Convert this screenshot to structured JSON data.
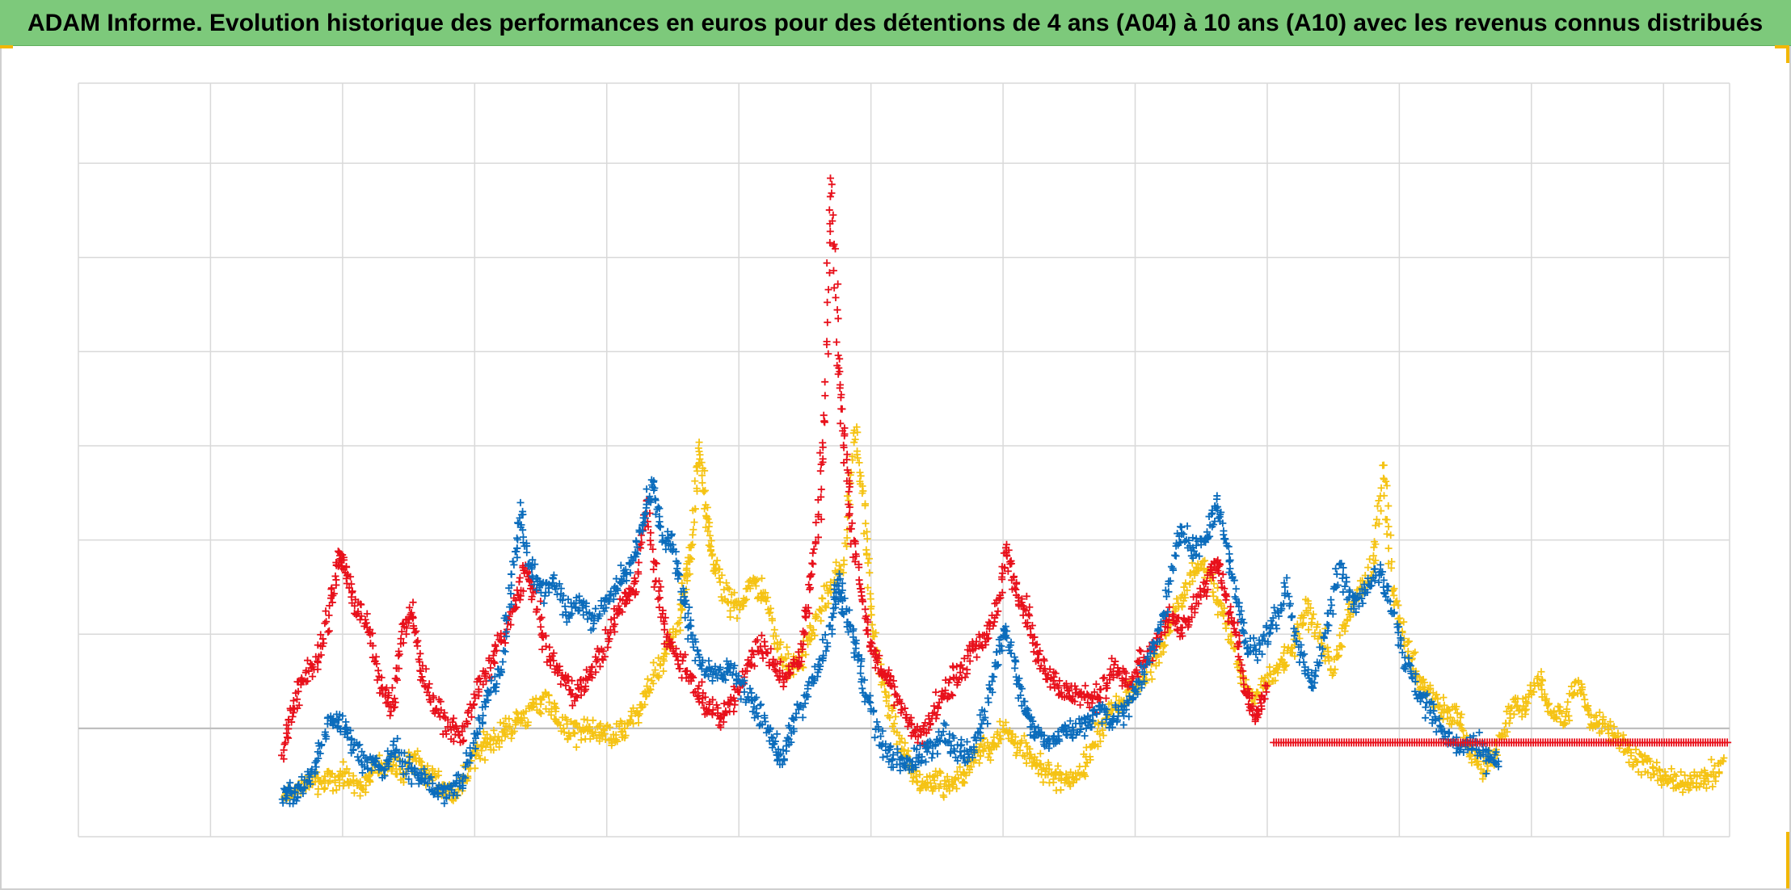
{
  "title": "ADAM Informe. Evolution historique des performances en euros pour des détentions de 4 ans (A04) à 10 ans (A10) avec les revenus connus distribués",
  "colors": {
    "header_bg": "#7dc97b",
    "accent_corner": "#f2b705",
    "grid": "#d9d9d9",
    "zero_line": "#bfbfbf"
  },
  "chart_data": {
    "type": "scatter",
    "marker": "plus",
    "grid": true,
    "legend": "none",
    "axis_labels_shown": false,
    "xlim": [
      0,
      12.5
    ],
    "ylim": [
      -1.15,
      6.85
    ],
    "zero_line_y": 0,
    "series": [
      {
        "color": "#e8101b",
        "points": [
          [
            1.55,
            -0.25
          ],
          [
            1.62,
            0.2
          ],
          [
            1.7,
            0.5
          ],
          [
            1.8,
            0.7
          ],
          [
            1.9,
            1.2
          ],
          [
            1.97,
            1.85
          ],
          [
            2.02,
            1.7
          ],
          [
            2.1,
            1.3
          ],
          [
            2.2,
            1.05
          ],
          [
            2.3,
            0.4
          ],
          [
            2.38,
            0.2
          ],
          [
            2.45,
            1.0
          ],
          [
            2.52,
            1.25
          ],
          [
            2.6,
            0.6
          ],
          [
            2.7,
            0.2
          ],
          [
            2.8,
            0.05
          ],
          [
            2.9,
            -0.1
          ],
          [
            3.0,
            0.35
          ],
          [
            3.1,
            0.6
          ],
          [
            3.2,
            0.9
          ],
          [
            3.3,
            1.3
          ],
          [
            3.38,
            1.7
          ],
          [
            3.45,
            1.4
          ],
          [
            3.55,
            0.8
          ],
          [
            3.65,
            0.55
          ],
          [
            3.75,
            0.4
          ],
          [
            3.85,
            0.5
          ],
          [
            3.95,
            0.8
          ],
          [
            4.05,
            1.1
          ],
          [
            4.15,
            1.4
          ],
          [
            4.22,
            1.5
          ],
          [
            4.3,
            2.4
          ],
          [
            4.38,
            1.5
          ],
          [
            4.45,
            0.95
          ],
          [
            4.55,
            0.75
          ],
          [
            4.65,
            0.5
          ],
          [
            4.75,
            0.3
          ],
          [
            4.85,
            0.1
          ],
          [
            4.95,
            0.3
          ],
          [
            5.05,
            0.6
          ],
          [
            5.15,
            0.9
          ],
          [
            5.25,
            0.7
          ],
          [
            5.35,
            0.55
          ],
          [
            5.45,
            0.7
          ],
          [
            5.52,
            1.3
          ],
          [
            5.6,
            2.2
          ],
          [
            5.65,
            3.4
          ],
          [
            5.7,
            5.9
          ],
          [
            5.75,
            3.9
          ],
          [
            5.8,
            3.0
          ],
          [
            5.85,
            2.2
          ],
          [
            5.92,
            1.5
          ],
          [
            6.0,
            0.9
          ],
          [
            6.08,
            0.6
          ],
          [
            6.15,
            0.5
          ],
          [
            6.25,
            0.2
          ],
          [
            6.35,
            -0.1
          ],
          [
            6.45,
            0.05
          ],
          [
            6.55,
            0.4
          ],
          [
            6.65,
            0.55
          ],
          [
            6.75,
            0.75
          ],
          [
            6.85,
            0.95
          ],
          [
            6.95,
            1.2
          ],
          [
            7.02,
            1.9
          ],
          [
            7.1,
            1.5
          ],
          [
            7.18,
            1.25
          ],
          [
            7.25,
            0.8
          ],
          [
            7.35,
            0.6
          ],
          [
            7.45,
            0.4
          ],
          [
            7.55,
            0.35
          ],
          [
            7.65,
            0.3
          ],
          [
            7.75,
            0.4
          ],
          [
            7.85,
            0.65
          ],
          [
            7.95,
            0.45
          ],
          [
            8.05,
            0.7
          ],
          [
            8.15,
            0.9
          ],
          [
            8.25,
            1.2
          ],
          [
            8.35,
            1.05
          ],
          [
            8.45,
            1.3
          ],
          [
            8.55,
            1.6
          ],
          [
            8.62,
            1.8
          ],
          [
            8.7,
            1.3
          ],
          [
            8.78,
            0.9
          ],
          [
            8.85,
            0.3
          ],
          [
            8.92,
            0.15
          ],
          [
            9.0,
            0.45
          ]
        ]
      },
      {
        "color": "#0b6cbc",
        "points": [
          [
            1.55,
            -0.7
          ],
          [
            1.62,
            -0.72
          ],
          [
            1.7,
            -0.62
          ],
          [
            1.8,
            -0.4
          ],
          [
            1.9,
            0.1
          ],
          [
            2.0,
            0.05
          ],
          [
            2.1,
            -0.25
          ],
          [
            2.2,
            -0.35
          ],
          [
            2.3,
            -0.45
          ],
          [
            2.4,
            -0.2
          ],
          [
            2.5,
            -0.45
          ],
          [
            2.6,
            -0.5
          ],
          [
            2.7,
            -0.65
          ],
          [
            2.8,
            -0.7
          ],
          [
            2.9,
            -0.55
          ],
          [
            3.0,
            -0.1
          ],
          [
            3.1,
            0.35
          ],
          [
            3.2,
            0.6
          ],
          [
            3.28,
            1.6
          ],
          [
            3.35,
            2.25
          ],
          [
            3.42,
            1.7
          ],
          [
            3.5,
            1.45
          ],
          [
            3.6,
            1.6
          ],
          [
            3.7,
            1.2
          ],
          [
            3.8,
            1.35
          ],
          [
            3.9,
            1.1
          ],
          [
            4.0,
            1.35
          ],
          [
            4.1,
            1.6
          ],
          [
            4.2,
            1.75
          ],
          [
            4.28,
            2.25
          ],
          [
            4.35,
            2.6
          ],
          [
            4.42,
            2.05
          ],
          [
            4.5,
            1.95
          ],
          [
            4.58,
            1.4
          ],
          [
            4.65,
            0.9
          ],
          [
            4.75,
            0.65
          ],
          [
            4.85,
            0.55
          ],
          [
            4.95,
            0.65
          ],
          [
            5.05,
            0.4
          ],
          [
            5.15,
            0.15
          ],
          [
            5.25,
            -0.1
          ],
          [
            5.32,
            -0.35
          ],
          [
            5.4,
            0.0
          ],
          [
            5.5,
            0.35
          ],
          [
            5.6,
            0.6
          ],
          [
            5.7,
            1.1
          ],
          [
            5.75,
            1.55
          ],
          [
            5.8,
            1.25
          ],
          [
            5.88,
            0.9
          ],
          [
            5.95,
            0.45
          ],
          [
            6.05,
            -0.05
          ],
          [
            6.15,
            -0.3
          ],
          [
            6.25,
            -0.38
          ],
          [
            6.35,
            -0.3
          ],
          [
            6.45,
            -0.2
          ],
          [
            6.55,
            -0.05
          ],
          [
            6.65,
            -0.25
          ],
          [
            6.75,
            -0.3
          ],
          [
            6.85,
            0.1
          ],
          [
            6.95,
            0.7
          ],
          [
            7.02,
            1.1
          ],
          [
            7.1,
            0.55
          ],
          [
            7.18,
            0.15
          ],
          [
            7.25,
            -0.05
          ],
          [
            7.35,
            -0.15
          ],
          [
            7.45,
            -0.05
          ],
          [
            7.55,
            0.0
          ],
          [
            7.65,
            0.05
          ],
          [
            7.75,
            0.2
          ],
          [
            7.85,
            0.1
          ],
          [
            7.95,
            0.25
          ],
          [
            8.05,
            0.55
          ],
          [
            8.15,
            0.9
          ],
          [
            8.25,
            1.45
          ],
          [
            8.35,
            2.15
          ],
          [
            8.45,
            1.85
          ],
          [
            8.55,
            2.05
          ],
          [
            8.62,
            2.4
          ],
          [
            8.7,
            1.9
          ],
          [
            8.78,
            1.35
          ],
          [
            8.85,
            0.8
          ],
          [
            8.95,
            0.9
          ],
          [
            9.05,
            1.1
          ],
          [
            9.15,
            1.5
          ],
          [
            9.25,
            0.75
          ],
          [
            9.35,
            0.45
          ],
          [
            9.45,
            1.1
          ],
          [
            9.55,
            1.7
          ],
          [
            9.65,
            1.35
          ],
          [
            9.75,
            1.5
          ],
          [
            9.85,
            1.7
          ],
          [
            9.95,
            1.3
          ],
          [
            10.05,
            0.7
          ],
          [
            10.15,
            0.35
          ],
          [
            10.25,
            0.15
          ],
          [
            10.35,
            -0.05
          ],
          [
            10.45,
            -0.25
          ],
          [
            10.55,
            -0.15
          ],
          [
            10.65,
            -0.3
          ],
          [
            10.75,
            -0.35
          ]
        ]
      },
      {
        "color": "#f5c314",
        "points": [
          [
            1.55,
            -0.75
          ],
          [
            1.65,
            -0.65
          ],
          [
            1.75,
            -0.55
          ],
          [
            1.85,
            -0.6
          ],
          [
            1.95,
            -0.5
          ],
          [
            2.05,
            -0.55
          ],
          [
            2.15,
            -0.6
          ],
          [
            2.25,
            -0.45
          ],
          [
            2.35,
            -0.35
          ],
          [
            2.45,
            -0.5
          ],
          [
            2.55,
            -0.3
          ],
          [
            2.65,
            -0.5
          ],
          [
            2.75,
            -0.6
          ],
          [
            2.85,
            -0.7
          ],
          [
            2.95,
            -0.45
          ],
          [
            3.05,
            -0.2
          ],
          [
            3.15,
            -0.1
          ],
          [
            3.25,
            0.0
          ],
          [
            3.35,
            0.1
          ],
          [
            3.45,
            0.2
          ],
          [
            3.55,
            0.35
          ],
          [
            3.65,
            0.05
          ],
          [
            3.75,
            -0.05
          ],
          [
            3.85,
            0.0
          ],
          [
            3.95,
            -0.05
          ],
          [
            4.05,
            -0.1
          ],
          [
            4.15,
            0.0
          ],
          [
            4.25,
            0.2
          ],
          [
            4.35,
            0.5
          ],
          [
            4.45,
            0.8
          ],
          [
            4.55,
            1.15
          ],
          [
            4.6,
            1.6
          ],
          [
            4.65,
            2.0
          ],
          [
            4.7,
            3.05
          ],
          [
            4.75,
            2.3
          ],
          [
            4.8,
            1.8
          ],
          [
            4.9,
            1.4
          ],
          [
            5.0,
            1.25
          ],
          [
            5.1,
            1.6
          ],
          [
            5.2,
            1.4
          ],
          [
            5.3,
            0.9
          ],
          [
            5.4,
            0.6
          ],
          [
            5.5,
            0.8
          ],
          [
            5.6,
            1.2
          ],
          [
            5.7,
            1.5
          ],
          [
            5.8,
            1.8
          ],
          [
            5.88,
            3.2
          ],
          [
            5.95,
            2.3
          ],
          [
            6.0,
            1.2
          ],
          [
            6.1,
            0.4
          ],
          [
            6.2,
            -0.05
          ],
          [
            6.3,
            -0.45
          ],
          [
            6.4,
            -0.6
          ],
          [
            6.5,
            -0.55
          ],
          [
            6.6,
            -0.6
          ],
          [
            6.7,
            -0.5
          ],
          [
            6.8,
            -0.25
          ],
          [
            6.9,
            -0.2
          ],
          [
            7.0,
            0.0
          ],
          [
            7.1,
            -0.15
          ],
          [
            7.2,
            -0.3
          ],
          [
            7.3,
            -0.45
          ],
          [
            7.4,
            -0.5
          ],
          [
            7.5,
            -0.55
          ],
          [
            7.6,
            -0.45
          ],
          [
            7.7,
            -0.1
          ],
          [
            7.8,
            0.15
          ],
          [
            7.9,
            0.3
          ],
          [
            8.0,
            0.45
          ],
          [
            8.1,
            0.6
          ],
          [
            8.2,
            0.8
          ],
          [
            8.3,
            1.2
          ],
          [
            8.4,
            1.5
          ],
          [
            8.5,
            1.8
          ],
          [
            8.6,
            1.5
          ],
          [
            8.7,
            1.1
          ],
          [
            8.8,
            0.55
          ],
          [
            8.9,
            0.3
          ],
          [
            9.0,
            0.5
          ],
          [
            9.1,
            0.65
          ],
          [
            9.2,
            0.85
          ],
          [
            9.3,
            1.25
          ],
          [
            9.4,
            1.0
          ],
          [
            9.5,
            0.6
          ],
          [
            9.6,
            1.15
          ],
          [
            9.7,
            1.5
          ],
          [
            9.8,
            1.7
          ],
          [
            9.88,
            2.8
          ],
          [
            9.95,
            1.5
          ],
          [
            10.05,
            0.9
          ],
          [
            10.15,
            0.5
          ],
          [
            10.25,
            0.35
          ],
          [
            10.35,
            0.2
          ],
          [
            10.45,
            0.1
          ],
          [
            10.55,
            -0.3
          ],
          [
            10.65,
            -0.4
          ],
          [
            10.75,
            -0.2
          ],
          [
            10.85,
            0.2
          ],
          [
            10.95,
            0.25
          ],
          [
            11.05,
            0.5
          ],
          [
            11.15,
            0.2
          ],
          [
            11.25,
            0.1
          ],
          [
            11.35,
            0.5
          ],
          [
            11.45,
            0.1
          ],
          [
            11.55,
            0.05
          ],
          [
            11.65,
            -0.1
          ],
          [
            11.75,
            -0.25
          ],
          [
            11.85,
            -0.4
          ],
          [
            11.95,
            -0.45
          ],
          [
            12.05,
            -0.55
          ],
          [
            12.15,
            -0.6
          ],
          [
            12.25,
            -0.5
          ],
          [
            12.35,
            -0.55
          ],
          [
            12.45,
            -0.35
          ]
        ]
      },
      {
        "color": "#e8101b",
        "points": [
          [
            9.05,
            -0.15
          ],
          [
            12.5,
            -0.15
          ]
        ]
      }
    ]
  }
}
